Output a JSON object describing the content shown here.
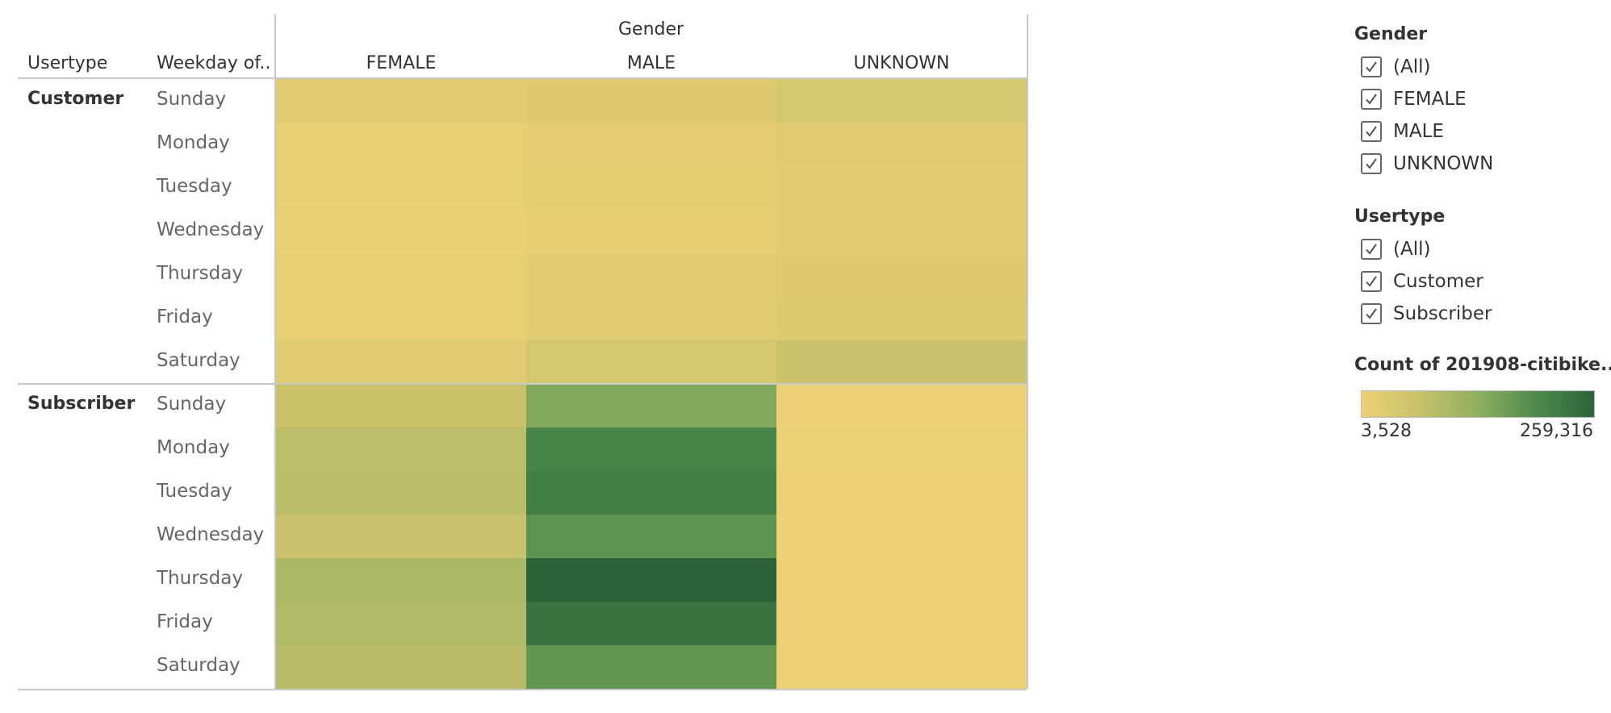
{
  "chart_data": {
    "type": "heatmap",
    "title": "",
    "column_dimension": "Gender",
    "row_header_labels": [
      "Usertype",
      "Weekday of.."
    ],
    "columns": [
      "FEMALE",
      "MALE",
      "UNKNOWN"
    ],
    "rows": [
      {
        "usertype": "Customer",
        "weekday": "Sunday",
        "values": [
          22000,
          30000,
          45000
        ]
      },
      {
        "usertype": "Customer",
        "weekday": "Monday",
        "values": [
          12000,
          18000,
          26000
        ]
      },
      {
        "usertype": "Customer",
        "weekday": "Tuesday",
        "values": [
          12000,
          17000,
          24000
        ]
      },
      {
        "usertype": "Customer",
        "weekday": "Wednesday",
        "values": [
          9000,
          15000,
          22000
        ]
      },
      {
        "usertype": "Customer",
        "weekday": "Thursday",
        "values": [
          13000,
          22000,
          30000
        ]
      },
      {
        "usertype": "Customer",
        "weekday": "Friday",
        "values": [
          13000,
          24000,
          32000
        ]
      },
      {
        "usertype": "Customer",
        "weekday": "Saturday",
        "values": [
          24000,
          45000,
          66000
        ]
      },
      {
        "usertype": "Subscriber",
        "weekday": "Sunday",
        "values": [
          65000,
          145000,
          4000
        ]
      },
      {
        "usertype": "Subscriber",
        "weekday": "Monday",
        "values": [
          80000,
          205000,
          4500
        ]
      },
      {
        "usertype": "Subscriber",
        "weekday": "Tuesday",
        "values": [
          83000,
          215000,
          4200
        ]
      },
      {
        "usertype": "Subscriber",
        "weekday": "Wednesday",
        "values": [
          64000,
          180000,
          3800
        ]
      },
      {
        "usertype": "Subscriber",
        "weekday": "Thursday",
        "values": [
          100000,
          259316,
          3528
        ]
      },
      {
        "usertype": "Subscriber",
        "weekday": "Friday",
        "values": [
          93000,
          232000,
          3600
        ]
      },
      {
        "usertype": "Subscriber",
        "weekday": "Saturday",
        "values": [
          85000,
          175000,
          3700
        ]
      }
    ],
    "color_scale": {
      "min": 3528,
      "max": 259316,
      "min_label": "3,528",
      "max_label": "259,316",
      "colors": [
        "#ecd176",
        "#c8c16b",
        "#8fb060",
        "#4e8a4d",
        "#2c6339"
      ]
    }
  },
  "filters": [
    {
      "title": "Gender",
      "items": [
        {
          "label": "(All)",
          "checked": true
        },
        {
          "label": "FEMALE",
          "checked": true
        },
        {
          "label": "MALE",
          "checked": true
        },
        {
          "label": "UNKNOWN",
          "checked": true
        }
      ]
    },
    {
      "title": "Usertype",
      "items": [
        {
          "label": "(All)",
          "checked": true
        },
        {
          "label": "Customer",
          "checked": true
        },
        {
          "label": "Subscriber",
          "checked": true
        }
      ]
    }
  ],
  "legend": {
    "title": "Count of 201908-citibike...",
    "min_label": "3,528",
    "max_label": "259,316"
  }
}
